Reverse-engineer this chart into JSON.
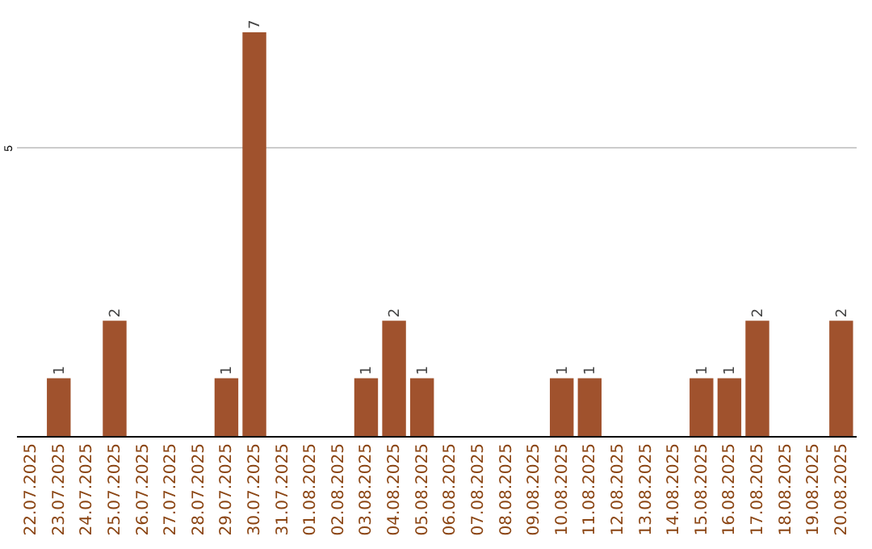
{
  "chart_data": {
    "type": "bar",
    "categories": [
      "22.07.2025",
      "23.07.2025",
      "24.07.2025",
      "25.07.2025",
      "26.07.2025",
      "27.07.2025",
      "28.07.2025",
      "29.07.2025",
      "30.07.2025",
      "31.07.2025",
      "01.08.2025",
      "02.08.2025",
      "03.08.2025",
      "04.08.2025",
      "05.08.2025",
      "06.08.2025",
      "07.08.2025",
      "08.08.2025",
      "09.08.2025",
      "10.08.2025",
      "11.08.2025",
      "12.08.2025",
      "13.08.2025",
      "14.08.2025",
      "15.08.2025",
      "16.08.2025",
      "17.08.2025",
      "18.08.2025",
      "19.08.2025",
      "20.08.2025"
    ],
    "values": [
      0,
      1,
      0,
      2,
      0,
      0,
      0,
      1,
      7,
      0,
      0,
      0,
      1,
      2,
      1,
      0,
      0,
      0,
      0,
      1,
      1,
      0,
      0,
      0,
      1,
      1,
      2,
      0,
      0,
      2
    ],
    "value_labels": [
      null,
      "1",
      null,
      "2",
      null,
      null,
      null,
      "1",
      "7",
      null,
      null,
      null,
      "1",
      "2",
      "1",
      null,
      null,
      null,
      null,
      "1",
      "1",
      null,
      null,
      null,
      "1",
      "1",
      "2",
      null,
      null,
      "2"
    ],
    "color": "#a0522d",
    "ylim": [
      0,
      7
    ],
    "yticks": [
      {
        "value": 0,
        "label": null
      },
      5
    ],
    "grid": "y"
  }
}
